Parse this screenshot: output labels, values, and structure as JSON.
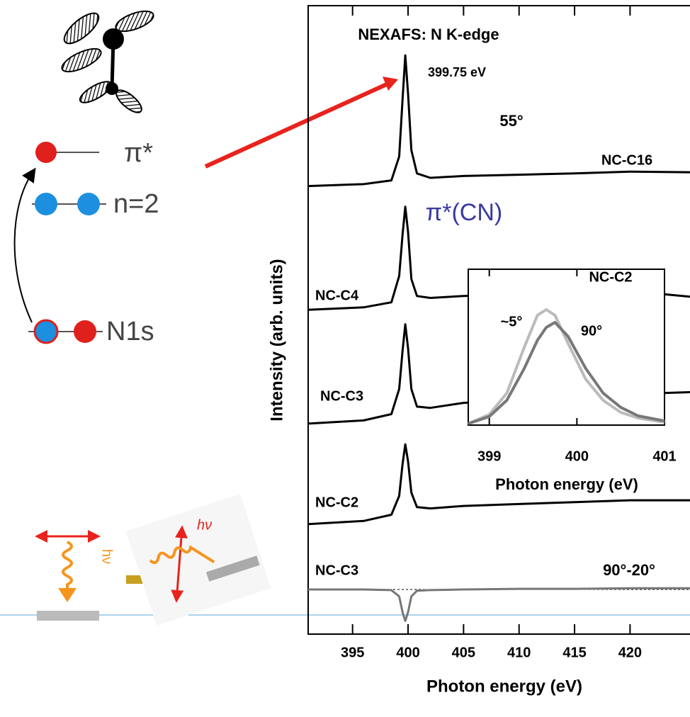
{
  "chart_data": [
    {
      "type": "line",
      "title": "NEXAFS: N K-edge",
      "x_label": "Photon energy (eV)",
      "y_label": "Intensity (arb. units)",
      "x": [
        391,
        396,
        398.5,
        399.2,
        399.5,
        399.75,
        400,
        400.3,
        400.8,
        402,
        405,
        410,
        415,
        420,
        425.4
      ],
      "series": [
        {
          "name": "NC-C16",
          "color": "#000000",
          "values": [
            71.3,
            71.6,
            72.2,
            76,
            85,
            92.1,
            86,
            77,
            73.3,
            72.6,
            72.9,
            73.1,
            73.3,
            73.6,
            73.5
          ]
        },
        {
          "name": "NC-C4",
          "color": "#000000",
          "values": [
            51.6,
            52,
            52.8,
            57,
            63.5,
            68,
            64,
            56.5,
            53.8,
            53.5,
            53.8,
            54,
            54.2,
            54.6,
            53.7
          ]
        },
        {
          "name": "NC-C3",
          "color": "#000000",
          "values": [
            33.5,
            34,
            35,
            39,
            45,
            49.3,
            45.5,
            39,
            36.2,
            36,
            36.8,
            37.3,
            37.7,
            38.2,
            38.5
          ]
        },
        {
          "name": "NC-C2",
          "color": "#000000",
          "values": [
            17.5,
            18,
            19,
            22,
            27,
            30.2,
            27.5,
            22.5,
            20.2,
            20,
            20.4,
            20.7,
            21,
            21.3,
            21.3
          ]
        },
        {
          "name": "NC-C3",
          "color": "#777777",
          "values": [
            7.1,
            7.1,
            7.0,
            6.0,
            3.5,
            2.1,
            3.5,
            6.0,
            6.9,
            7.0,
            7.1,
            7.2,
            7.2,
            7.3,
            7.3
          ]
        }
      ],
      "annotations": [
        "399.75 eV",
        "55°",
        "π*(CN)",
        "90°-20°"
      ],
      "xlim": [
        391,
        425.4
      ],
      "xticks": [
        395,
        400,
        405,
        410,
        415,
        420
      ],
      "ylim": [
        0,
        100
      ]
    },
    {
      "type": "line",
      "title": "NC-C2",
      "x_label": "Photon energy (eV)",
      "x": [
        398.76,
        399,
        399.2,
        399.4,
        399.55,
        399.65,
        399.75,
        399.9,
        400.1,
        400.3,
        400.5,
        400.7,
        401
      ],
      "series": [
        {
          "name": "~5°",
          "color": "#bbbbbb",
          "values": [
            0.9,
            6.8,
            20.5,
            50,
            70.5,
            74.1,
            70.5,
            52.3,
            29.5,
            15.9,
            8.2,
            4.5,
            1.8
          ]
        },
        {
          "name": "90°",
          "color": "#777777",
          "values": [
            0.9,
            5.5,
            15.9,
            36.4,
            54.5,
            62.7,
            65.9,
            56.8,
            36.4,
            20.5,
            11.4,
            5.9,
            2.7
          ]
        }
      ],
      "xlim": [
        398.76,
        401
      ],
      "xticks": [
        399,
        400,
        401
      ],
      "ylim": [
        0,
        100
      ]
    }
  ],
  "diagram": {
    "levels": [
      "π*",
      "n=2",
      "N1s"
    ],
    "photon": [
      "hν",
      "hν"
    ]
  }
}
